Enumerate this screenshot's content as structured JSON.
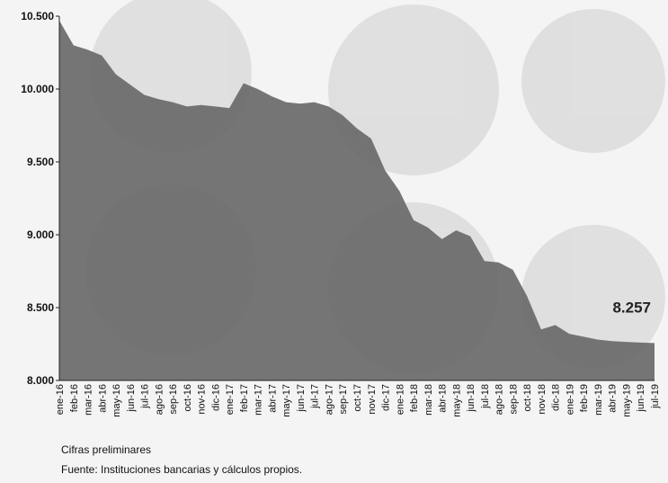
{
  "chart_data": {
    "type": "area",
    "x": [
      "ene-16",
      "feb-16",
      "mar-16",
      "abr-16",
      "may-16",
      "jun-16",
      "jul-16",
      "ago-16",
      "sep-16",
      "oct-16",
      "nov-16",
      "dic-16",
      "ene-17",
      "feb-17",
      "mar-17",
      "abr-17",
      "may-17",
      "jun-17",
      "jul-17",
      "ago-17",
      "sep-17",
      "oct-17",
      "nov-17",
      "dic-17",
      "ene-18",
      "feb-18",
      "mar-18",
      "abr-18",
      "may-18",
      "jun-18",
      "jul-18",
      "ago-18",
      "sep-18",
      "oct-18",
      "nov-18",
      "dic-18",
      "ene-19",
      "feb-19",
      "mar-19",
      "abr-19",
      "may-19",
      "jun-19",
      "jul-19"
    ],
    "values": [
      10470,
      10300,
      10270,
      10230,
      10100,
      10030,
      9960,
      9930,
      9910,
      9880,
      9890,
      9880,
      9870,
      10040,
      10000,
      9950,
      9910,
      9900,
      9910,
      9880,
      9820,
      9730,
      9660,
      9440,
      9300,
      9100,
      9050,
      8970,
      9030,
      8990,
      8820,
      8810,
      8760,
      8580,
      8350,
      8380,
      8320,
      8300,
      8280,
      8270,
      8265,
      8260,
      8257
    ],
    "ylim": [
      8000,
      10500
    ],
    "yticks": [
      "8.000",
      "8.500",
      "9.000",
      "9.500",
      "10.000",
      "10.500"
    ],
    "ytick_values": [
      8000,
      8500,
      9000,
      9500,
      10000,
      10500
    ],
    "annotation": "8.257",
    "fill_color": "#6b6b6b",
    "grid": false
  },
  "notes": {
    "line1": "Cifras preliminares",
    "line2": "Fuente: Instituciones bancarias y cálculos propios."
  }
}
